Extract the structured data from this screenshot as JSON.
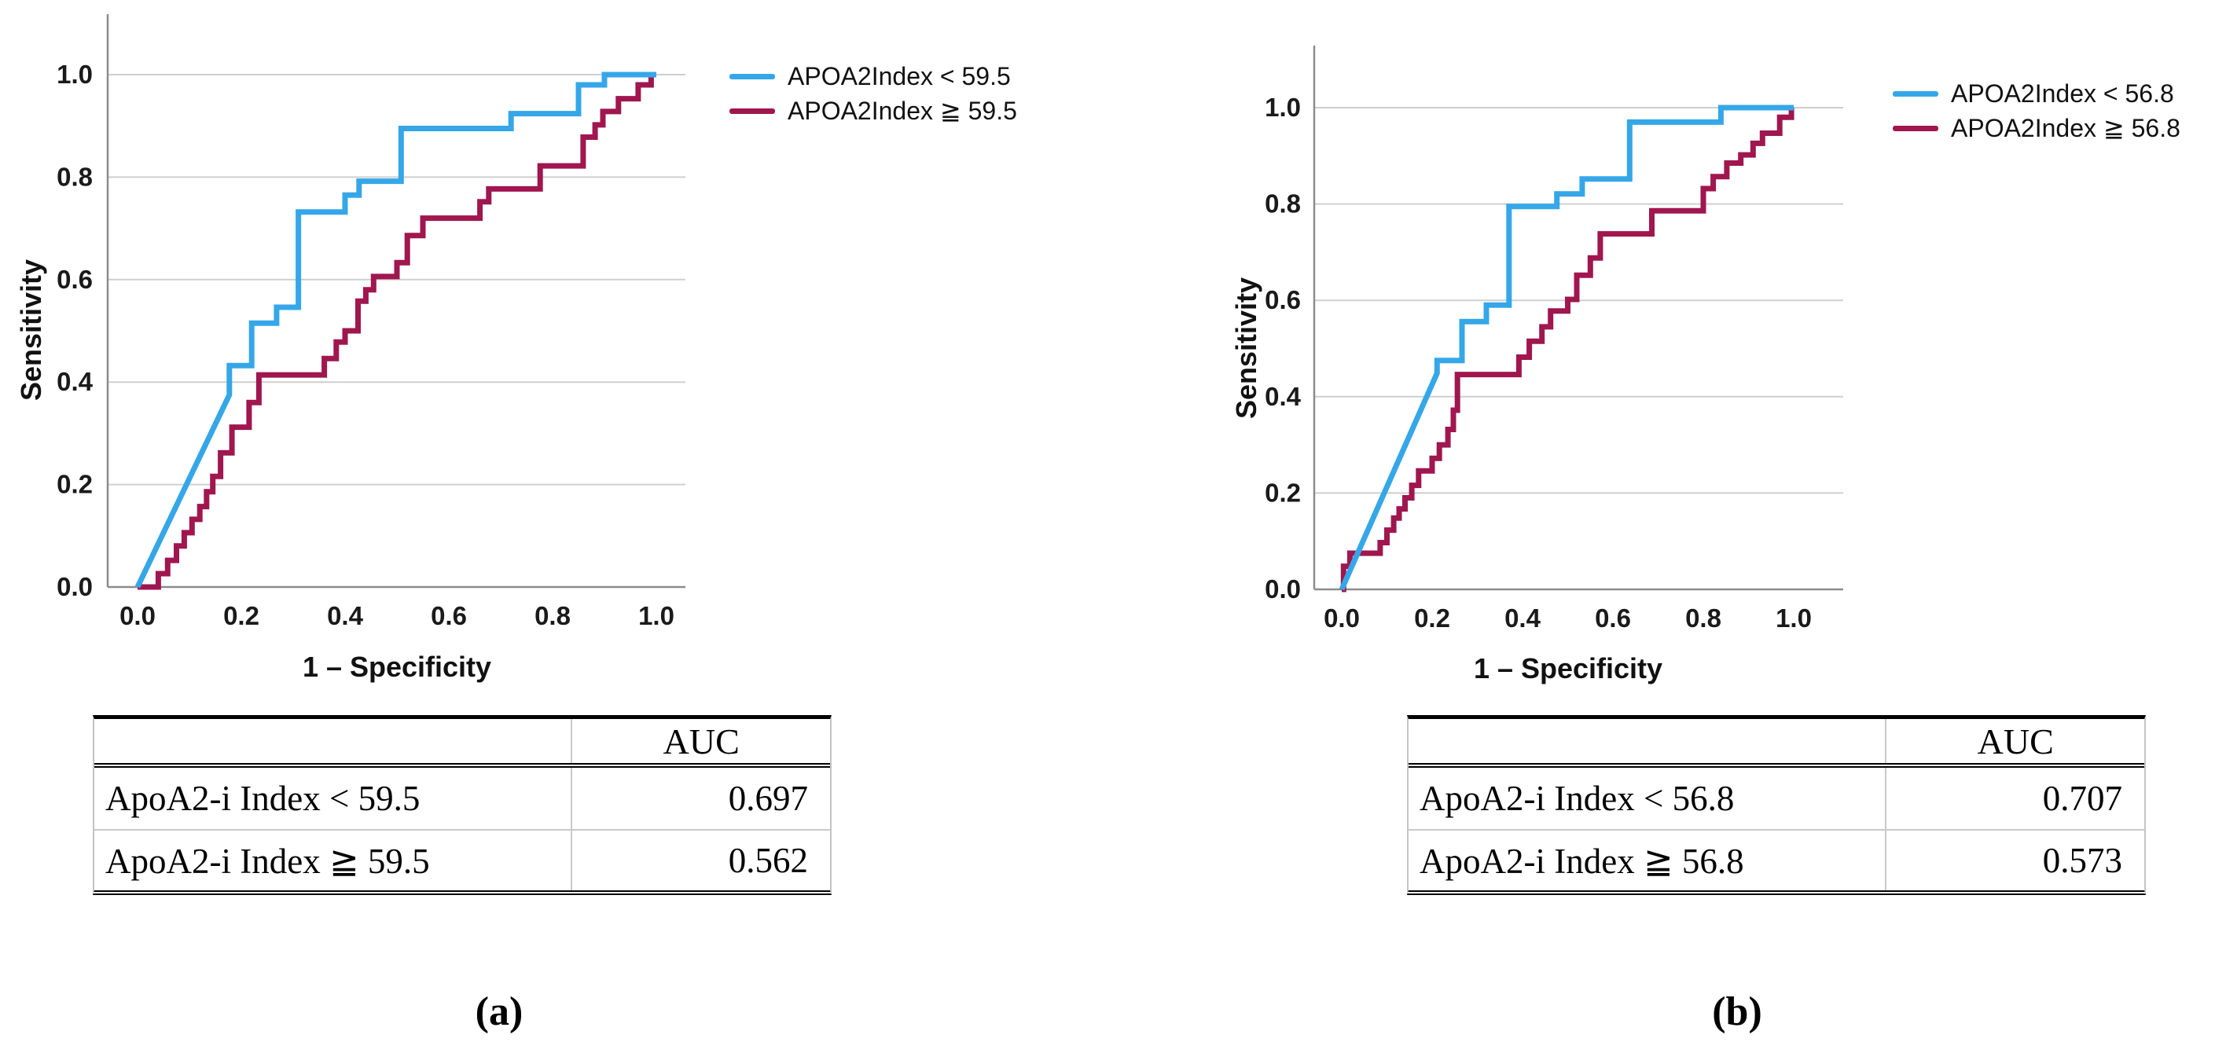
{
  "figure": {
    "panels": [
      {
        "caption": "(a)",
        "table": {
          "header": [
            "",
            "AUC"
          ],
          "rows": [
            [
              "ApoA2-i Index < 59.5",
              "0.697"
            ],
            [
              "ApoA2-i Index ≧ 59.5",
              "0.562"
            ]
          ]
        }
      },
      {
        "caption": "(b)",
        "table": {
          "header": [
            "",
            "AUC"
          ],
          "rows": [
            [
              "ApoA2-i Index < 56.8",
              "0.707"
            ],
            [
              "ApoA2-i Index ≧ 56.8",
              "0.573"
            ]
          ]
        }
      }
    ]
  },
  "colors": {
    "curve_blue": "#35A7E8",
    "curve_crimson": "#A0164F",
    "gridline": "#CFCFCF",
    "axis": "#8C8C8C"
  },
  "chart_data": [
    {
      "type": "line",
      "subtype": "roc-step-curve",
      "title": "",
      "xlabel": "1 – Specificity",
      "ylabel": "Sensitivity",
      "xlim": [
        0,
        1
      ],
      "ylim": [
        0,
        1
      ],
      "xticks": [
        "0.0",
        "0.2",
        "0.4",
        "0.6",
        "0.8",
        "1.0"
      ],
      "yticks": [
        "0.0",
        "0.2",
        "0.4",
        "0.6",
        "0.8",
        "1.0"
      ],
      "grid": "horizontal-only",
      "legend_position": "outside-top-right",
      "series": [
        {
          "name": "APOA2Index < 59.5",
          "color": "#35A7E8",
          "auc": 0.697,
          "points": [
            [
              0,
              0
            ],
            [
              0.177,
              0.375
            ],
            [
              0.177,
              0.432
            ],
            [
              0.22,
              0.432
            ],
            [
              0.22,
              0.515
            ],
            [
              0.268,
              0.515
            ],
            [
              0.268,
              0.546
            ],
            [
              0.31,
              0.546
            ],
            [
              0.31,
              0.732
            ],
            [
              0.4,
              0.732
            ],
            [
              0.4,
              0.765
            ],
            [
              0.427,
              0.765
            ],
            [
              0.427,
              0.792
            ],
            [
              0.508,
              0.792
            ],
            [
              0.508,
              0.895
            ],
            [
              0.72,
              0.895
            ],
            [
              0.72,
              0.924
            ],
            [
              0.85,
              0.924
            ],
            [
              0.85,
              0.98
            ],
            [
              0.9,
              0.98
            ],
            [
              0.9,
              1.0
            ],
            [
              1.0,
              1.0
            ]
          ]
        },
        {
          "name": "APOA2Index ≧ 59.5",
          "color": "#A0164F",
          "auc": 0.562,
          "points": [
            [
              0,
              0
            ],
            [
              0.04,
              0
            ],
            [
              0.04,
              0.026
            ],
            [
              0.058,
              0.026
            ],
            [
              0.058,
              0.052
            ],
            [
              0.075,
              0.052
            ],
            [
              0.075,
              0.08
            ],
            [
              0.09,
              0.08
            ],
            [
              0.09,
              0.106
            ],
            [
              0.105,
              0.106
            ],
            [
              0.105,
              0.132
            ],
            [
              0.12,
              0.132
            ],
            [
              0.12,
              0.157
            ],
            [
              0.133,
              0.157
            ],
            [
              0.133,
              0.186
            ],
            [
              0.145,
              0.186
            ],
            [
              0.145,
              0.216
            ],
            [
              0.16,
              0.216
            ],
            [
              0.16,
              0.262
            ],
            [
              0.182,
              0.262
            ],
            [
              0.182,
              0.312
            ],
            [
              0.215,
              0.312
            ],
            [
              0.215,
              0.36
            ],
            [
              0.234,
              0.36
            ],
            [
              0.234,
              0.414
            ],
            [
              0.36,
              0.414
            ],
            [
              0.36,
              0.446
            ],
            [
              0.383,
              0.446
            ],
            [
              0.383,
              0.478
            ],
            [
              0.4,
              0.478
            ],
            [
              0.4,
              0.5
            ],
            [
              0.425,
              0.5
            ],
            [
              0.425,
              0.558
            ],
            [
              0.44,
              0.558
            ],
            [
              0.44,
              0.58
            ],
            [
              0.455,
              0.58
            ],
            [
              0.455,
              0.606
            ],
            [
              0.5,
              0.606
            ],
            [
              0.5,
              0.633
            ],
            [
              0.52,
              0.633
            ],
            [
              0.52,
              0.686
            ],
            [
              0.55,
              0.686
            ],
            [
              0.55,
              0.72
            ],
            [
              0.66,
              0.72
            ],
            [
              0.66,
              0.752
            ],
            [
              0.677,
              0.752
            ],
            [
              0.677,
              0.777
            ],
            [
              0.776,
              0.777
            ],
            [
              0.776,
              0.822
            ],
            [
              0.859,
              0.822
            ],
            [
              0.859,
              0.878
            ],
            [
              0.882,
              0.878
            ],
            [
              0.882,
              0.902
            ],
            [
              0.897,
              0.902
            ],
            [
              0.897,
              0.928
            ],
            [
              0.927,
              0.928
            ],
            [
              0.927,
              0.953
            ],
            [
              0.965,
              0.953
            ],
            [
              0.965,
              0.98
            ],
            [
              0.99,
              0.98
            ],
            [
              0.99,
              1.0
            ],
            [
              1.0,
              1.0
            ]
          ]
        }
      ]
    },
    {
      "type": "line",
      "subtype": "roc-step-curve",
      "title": "",
      "xlabel": "1 – Specificity",
      "ylabel": "Sensitivity",
      "xlim": [
        0,
        1
      ],
      "ylim": [
        0,
        1
      ],
      "xticks": [
        "0.0",
        "0.2",
        "0.4",
        "0.6",
        "0.8",
        "1.0"
      ],
      "yticks": [
        "0.0",
        "0.2",
        "0.4",
        "0.6",
        "0.8",
        "1.0"
      ],
      "grid": "horizontal-only",
      "legend_position": "outside-top-right",
      "series": [
        {
          "name": "APOA2Index < 56.8",
          "color": "#35A7E8",
          "auc": 0.707,
          "points": [
            [
              0,
              0
            ],
            [
              0.211,
              0.449
            ],
            [
              0.211,
              0.475
            ],
            [
              0.266,
              0.475
            ],
            [
              0.266,
              0.556
            ],
            [
              0.32,
              0.556
            ],
            [
              0.32,
              0.59
            ],
            [
              0.37,
              0.59
            ],
            [
              0.37,
              0.795
            ],
            [
              0.476,
              0.795
            ],
            [
              0.476,
              0.821
            ],
            [
              0.532,
              0.821
            ],
            [
              0.532,
              0.852
            ],
            [
              0.637,
              0.852
            ],
            [
              0.637,
              0.97
            ],
            [
              0.839,
              0.97
            ],
            [
              0.839,
              1.0
            ],
            [
              1.0,
              1.0
            ]
          ]
        },
        {
          "name": "APOA2Index ≧ 56.8",
          "color": "#A0164F",
          "auc": 0.573,
          "points": [
            [
              0,
              0
            ],
            [
              0.004,
              0
            ],
            [
              0.004,
              0.048
            ],
            [
              0.018,
              0.048
            ],
            [
              0.018,
              0.075
            ],
            [
              0.085,
              0.075
            ],
            [
              0.085,
              0.097
            ],
            [
              0.1,
              0.097
            ],
            [
              0.1,
              0.123
            ],
            [
              0.115,
              0.123
            ],
            [
              0.115,
              0.148
            ],
            [
              0.127,
              0.148
            ],
            [
              0.127,
              0.167
            ],
            [
              0.14,
              0.167
            ],
            [
              0.14,
              0.19
            ],
            [
              0.155,
              0.19
            ],
            [
              0.155,
              0.216
            ],
            [
              0.17,
              0.216
            ],
            [
              0.17,
              0.246
            ],
            [
              0.2,
              0.246
            ],
            [
              0.2,
              0.272
            ],
            [
              0.216,
              0.272
            ],
            [
              0.216,
              0.3
            ],
            [
              0.235,
              0.3
            ],
            [
              0.235,
              0.332
            ],
            [
              0.247,
              0.332
            ],
            [
              0.247,
              0.372
            ],
            [
              0.256,
              0.372
            ],
            [
              0.256,
              0.446
            ],
            [
              0.392,
              0.446
            ],
            [
              0.392,
              0.482
            ],
            [
              0.415,
              0.482
            ],
            [
              0.415,
              0.515
            ],
            [
              0.443,
              0.515
            ],
            [
              0.443,
              0.545
            ],
            [
              0.462,
              0.545
            ],
            [
              0.462,
              0.578
            ],
            [
              0.5,
              0.578
            ],
            [
              0.5,
              0.602
            ],
            [
              0.52,
              0.602
            ],
            [
              0.52,
              0.652
            ],
            [
              0.55,
              0.652
            ],
            [
              0.55,
              0.688
            ],
            [
              0.572,
              0.688
            ],
            [
              0.572,
              0.738
            ],
            [
              0.686,
              0.738
            ],
            [
              0.686,
              0.786
            ],
            [
              0.8,
              0.786
            ],
            [
              0.8,
              0.832
            ],
            [
              0.822,
              0.832
            ],
            [
              0.822,
              0.857
            ],
            [
              0.852,
              0.857
            ],
            [
              0.852,
              0.885
            ],
            [
              0.883,
              0.885
            ],
            [
              0.883,
              0.902
            ],
            [
              0.91,
              0.902
            ],
            [
              0.91,
              0.926
            ],
            [
              0.931,
              0.926
            ],
            [
              0.931,
              0.947
            ],
            [
              0.969,
              0.947
            ],
            [
              0.969,
              0.98
            ],
            [
              0.995,
              0.98
            ],
            [
              0.995,
              1.0
            ],
            [
              1.0,
              1.0
            ]
          ]
        }
      ]
    }
  ]
}
